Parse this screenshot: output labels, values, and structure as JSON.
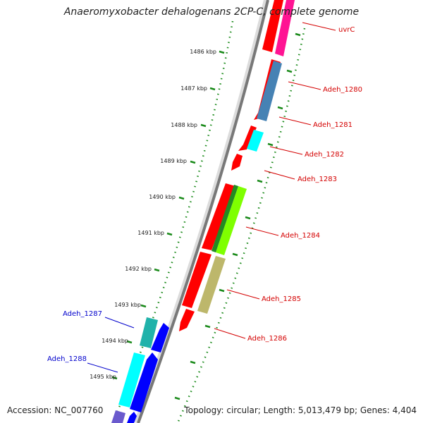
{
  "title": "Anaeromyxobacter dehalogenans 2CP-C, complete genome",
  "footer": {
    "accession": "Accession: NC_007760",
    "topology": "Topology: circular; Length: 5,013,479 bp; Genes: 4,404"
  },
  "ticks": [
    "1486 kbp",
    "1487 kbp",
    "1488 kbp",
    "1489 kbp",
    "1490 kbp",
    "1491 kbp",
    "1492 kbp",
    "1493 kbp",
    "1494 kbp",
    "1495 kbp"
  ],
  "genes": {
    "uvrC": "uvrC",
    "adeh1280": "Adeh_1280",
    "adeh1281": "Adeh_1281",
    "adeh1282": "Adeh_1282",
    "adeh1283": "Adeh_1283",
    "adeh1284": "Adeh_1284",
    "adeh1285": "Adeh_1285",
    "adeh1286": "Adeh_1286",
    "adeh1287": "Adeh_1287",
    "adeh1288": "Adeh_1288"
  },
  "colors": {
    "forward_strand": "#ff0000",
    "reverse_strand": "#0000ff",
    "tick_green": "#1a8a1a",
    "backbone": "#808080",
    "label_forward": "#d40000",
    "label_reverse": "#0000cc"
  }
}
